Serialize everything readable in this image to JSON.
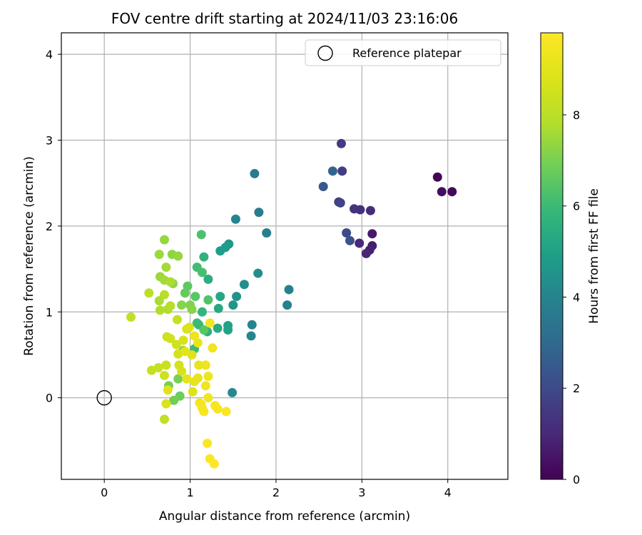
{
  "chart_data": {
    "type": "scatter",
    "title": "FOV centre drift starting at 2024/11/03 23:16:06",
    "xlabel": "Angular distance from reference (arcmin)",
    "ylabel": "Rotation from reference (arcmin)",
    "xlim": [
      -0.5,
      4.7
    ],
    "ylim": [
      -0.95,
      4.25
    ],
    "xticks": [
      0,
      1,
      2,
      3,
      4
    ],
    "yticks": [
      0,
      1,
      2,
      3,
      4
    ],
    "grid": true,
    "legend": {
      "placement": "top-right",
      "entries": [
        "Reference platepar"
      ]
    },
    "reference_point": {
      "label": "Reference platepar",
      "x": 0,
      "y": 0,
      "marker": "open-circle"
    },
    "colorbar": {
      "label": "Hours from first FF file",
      "colormap": "viridis",
      "range": [
        0,
        9.8
      ],
      "ticks": [
        0,
        2,
        4,
        6,
        8
      ]
    },
    "points": [
      {
        "x": 3.88,
        "y": 2.57,
        "c": 0.1
      },
      {
        "x": 4.05,
        "y": 2.4,
        "c": 0.2
      },
      {
        "x": 3.93,
        "y": 2.4,
        "c": 0.3
      },
      {
        "x": 3.12,
        "y": 1.91,
        "c": 0.6
      },
      {
        "x": 3.12,
        "y": 1.77,
        "c": 0.7
      },
      {
        "x": 3.09,
        "y": 1.72,
        "c": 0.8
      },
      {
        "x": 3.05,
        "y": 1.68,
        "c": 0.9
      },
      {
        "x": 2.97,
        "y": 1.8,
        "c": 1.0
      },
      {
        "x": 3.1,
        "y": 2.18,
        "c": 1.1
      },
      {
        "x": 2.98,
        "y": 2.19,
        "c": 1.2
      },
      {
        "x": 2.91,
        "y": 2.2,
        "c": 1.3
      },
      {
        "x": 2.76,
        "y": 2.96,
        "c": 1.5
      },
      {
        "x": 2.77,
        "y": 2.64,
        "c": 1.6
      },
      {
        "x": 2.73,
        "y": 2.28,
        "c": 1.7
      },
      {
        "x": 2.75,
        "y": 2.27,
        "c": 1.8
      },
      {
        "x": 2.82,
        "y": 1.92,
        "c": 2.0
      },
      {
        "x": 2.86,
        "y": 1.83,
        "c": 2.2
      },
      {
        "x": 2.55,
        "y": 2.46,
        "c": 2.4
      },
      {
        "x": 2.66,
        "y": 2.64,
        "c": 2.8
      },
      {
        "x": 1.75,
        "y": 2.61,
        "c": 3.6
      },
      {
        "x": 1.8,
        "y": 2.16,
        "c": 3.7
      },
      {
        "x": 1.89,
        "y": 1.92,
        "c": 3.8
      },
      {
        "x": 1.53,
        "y": 2.08,
        "c": 4.0
      },
      {
        "x": 2.15,
        "y": 1.26,
        "c": 3.9
      },
      {
        "x": 2.13,
        "y": 1.08,
        "c": 3.9
      },
      {
        "x": 1.72,
        "y": 0.85,
        "c": 4.0
      },
      {
        "x": 1.71,
        "y": 0.72,
        "c": 4.1
      },
      {
        "x": 1.49,
        "y": 0.06,
        "c": 4.2
      },
      {
        "x": 1.79,
        "y": 1.45,
        "c": 4.3
      },
      {
        "x": 1.63,
        "y": 1.32,
        "c": 4.4
      },
      {
        "x": 1.54,
        "y": 1.18,
        "c": 4.5
      },
      {
        "x": 1.5,
        "y": 1.08,
        "c": 4.6
      },
      {
        "x": 1.45,
        "y": 1.79,
        "c": 4.7
      },
      {
        "x": 1.41,
        "y": 1.75,
        "c": 4.8
      },
      {
        "x": 1.35,
        "y": 1.71,
        "c": 4.9
      },
      {
        "x": 1.44,
        "y": 0.84,
        "c": 5.0
      },
      {
        "x": 1.44,
        "y": 0.79,
        "c": 5.1
      },
      {
        "x": 1.35,
        "y": 1.18,
        "c": 5.2
      },
      {
        "x": 1.33,
        "y": 1.04,
        "c": 5.3
      },
      {
        "x": 1.32,
        "y": 0.81,
        "c": 5.4
      },
      {
        "x": 1.21,
        "y": 1.38,
        "c": 5.5
      },
      {
        "x": 1.2,
        "y": 0.77,
        "c": 5.6
      },
      {
        "x": 1.16,
        "y": 1.64,
        "c": 5.7
      },
      {
        "x": 1.14,
        "y": 1.0,
        "c": 5.8
      },
      {
        "x": 1.1,
        "y": 0.85,
        "c": 5.9
      },
      {
        "x": 1.08,
        "y": 0.87,
        "c": 6.0
      },
      {
        "x": 1.05,
        "y": 0.57,
        "c": 6.0
      },
      {
        "x": 1.08,
        "y": 1.52,
        "c": 6.1
      },
      {
        "x": 1.14,
        "y": 1.46,
        "c": 6.2
      },
      {
        "x": 1.13,
        "y": 1.9,
        "c": 6.3
      },
      {
        "x": 1.21,
        "y": 1.14,
        "c": 6.4
      },
      {
        "x": 1.16,
        "y": 0.79,
        "c": 6.5
      },
      {
        "x": 1.06,
        "y": 1.18,
        "c": 6.5
      },
      {
        "x": 0.97,
        "y": 1.3,
        "c": 6.6
      },
      {
        "x": 0.94,
        "y": 1.22,
        "c": 6.7
      },
      {
        "x": 0.88,
        "y": 0.02,
        "c": 6.8
      },
      {
        "x": 0.81,
        "y": -0.03,
        "c": 6.9
      },
      {
        "x": 0.75,
        "y": 0.14,
        "c": 7.0
      },
      {
        "x": 0.86,
        "y": 0.22,
        "c": 7.0
      },
      {
        "x": 0.92,
        "y": 0.55,
        "c": 7.1
      },
      {
        "x": 1.0,
        "y": 1.08,
        "c": 7.1
      },
      {
        "x": 1.02,
        "y": 1.03,
        "c": 7.2
      },
      {
        "x": 0.9,
        "y": 1.08,
        "c": 7.2
      },
      {
        "x": 0.8,
        "y": 1.33,
        "c": 7.3
      },
      {
        "x": 0.79,
        "y": 1.67,
        "c": 7.3
      },
      {
        "x": 0.86,
        "y": 1.65,
        "c": 7.4
      },
      {
        "x": 0.7,
        "y": 1.84,
        "c": 7.4
      },
      {
        "x": 0.64,
        "y": 1.67,
        "c": 7.5
      },
      {
        "x": 0.65,
        "y": 1.41,
        "c": 7.5
      },
      {
        "x": 0.7,
        "y": 1.37,
        "c": 7.6
      },
      {
        "x": 0.72,
        "y": 1.52,
        "c": 7.6
      },
      {
        "x": 0.77,
        "y": 1.35,
        "c": 7.7
      },
      {
        "x": 0.64,
        "y": 1.13,
        "c": 7.7
      },
      {
        "x": 0.65,
        "y": 1.02,
        "c": 7.8
      },
      {
        "x": 0.74,
        "y": 1.03,
        "c": 7.8
      },
      {
        "x": 0.77,
        "y": 1.07,
        "c": 7.9
      },
      {
        "x": 0.7,
        "y": 1.2,
        "c": 7.9
      },
      {
        "x": 0.52,
        "y": 1.22,
        "c": 8.0
      },
      {
        "x": 0.31,
        "y": 0.94,
        "c": 8.1
      },
      {
        "x": 0.7,
        "y": -0.25,
        "c": 8.1
      },
      {
        "x": 0.85,
        "y": 0.91,
        "c": 8.2
      },
      {
        "x": 0.55,
        "y": 0.32,
        "c": 8.2
      },
      {
        "x": 0.63,
        "y": 0.35,
        "c": 8.3
      },
      {
        "x": 0.72,
        "y": 0.38,
        "c": 8.3
      },
      {
        "x": 0.7,
        "y": 0.26,
        "c": 8.4
      },
      {
        "x": 0.73,
        "y": 0.71,
        "c": 8.4
      },
      {
        "x": 0.77,
        "y": 0.69,
        "c": 8.5
      },
      {
        "x": 0.84,
        "y": 0.62,
        "c": 8.5
      },
      {
        "x": 0.86,
        "y": 0.51,
        "c": 8.6
      },
      {
        "x": 0.87,
        "y": 0.38,
        "c": 8.6
      },
      {
        "x": 0.9,
        "y": 0.31,
        "c": 8.7
      },
      {
        "x": 0.92,
        "y": 0.67,
        "c": 8.7
      },
      {
        "x": 0.96,
        "y": 0.8,
        "c": 8.8
      },
      {
        "x": 0.99,
        "y": 0.82,
        "c": 8.8
      },
      {
        "x": 1.02,
        "y": 0.5,
        "c": 8.9
      },
      {
        "x": 1.03,
        "y": 0.07,
        "c": 8.9
      },
      {
        "x": 0.72,
        "y": -0.07,
        "c": 8.8
      },
      {
        "x": 0.74,
        "y": 0.09,
        "c": 8.9
      },
      {
        "x": 0.94,
        "y": 0.54,
        "c": 9.0
      },
      {
        "x": 0.96,
        "y": 0.22,
        "c": 9.0
      },
      {
        "x": 1.05,
        "y": 0.19,
        "c": 9.1
      },
      {
        "x": 1.09,
        "y": 0.23,
        "c": 9.1
      },
      {
        "x": 1.1,
        "y": 0.38,
        "c": 9.2
      },
      {
        "x": 1.09,
        "y": 0.64,
        "c": 9.2
      },
      {
        "x": 1.05,
        "y": 0.72,
        "c": 9.3
      },
      {
        "x": 1.18,
        "y": 0.38,
        "c": 9.3
      },
      {
        "x": 1.21,
        "y": 0.25,
        "c": 9.3
      },
      {
        "x": 1.18,
        "y": 0.14,
        "c": 9.4
      },
      {
        "x": 1.21,
        "y": 0.0,
        "c": 9.4
      },
      {
        "x": 1.26,
        "y": 0.58,
        "c": 9.4
      },
      {
        "x": 1.23,
        "y": 0.87,
        "c": 9.5
      },
      {
        "x": 1.11,
        "y": -0.06,
        "c": 9.5
      },
      {
        "x": 1.13,
        "y": -0.08,
        "c": 9.5
      },
      {
        "x": 1.14,
        "y": -0.12,
        "c": 9.6
      },
      {
        "x": 1.16,
        "y": -0.16,
        "c": 9.6
      },
      {
        "x": 1.29,
        "y": -0.09,
        "c": 9.6
      },
      {
        "x": 1.32,
        "y": -0.13,
        "c": 9.6
      },
      {
        "x": 1.42,
        "y": -0.16,
        "c": 9.7
      },
      {
        "x": 1.2,
        "y": -0.53,
        "c": 9.7
      },
      {
        "x": 1.23,
        "y": -0.71,
        "c": 9.7
      },
      {
        "x": 1.28,
        "y": -0.77,
        "c": 9.8
      }
    ]
  }
}
